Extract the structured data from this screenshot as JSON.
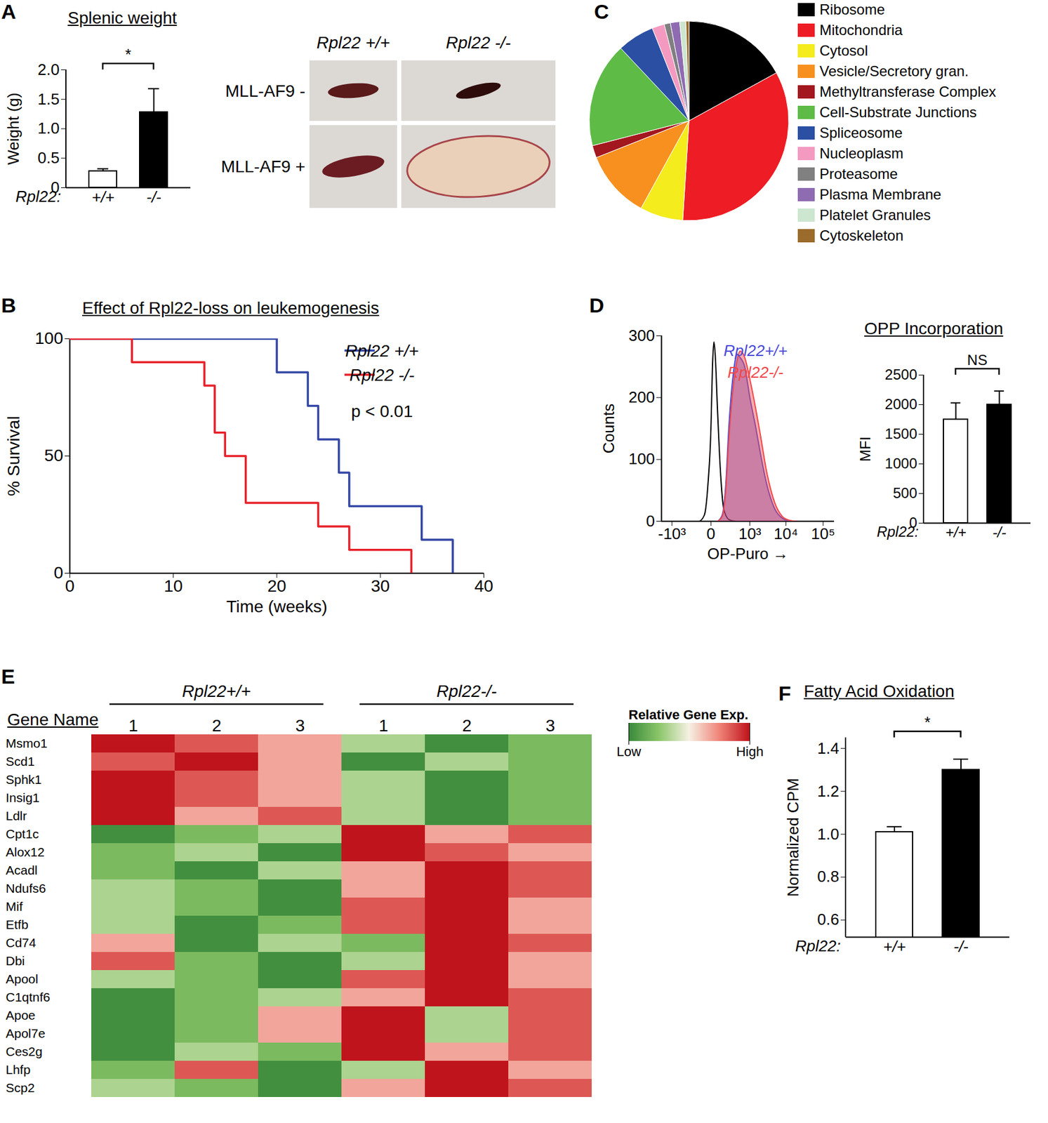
{
  "chart_data": [
    {
      "panel": "A",
      "type": "bar",
      "title": "Splenic weight",
      "ylabel": "Weight (g)",
      "xlabel": "Rpl22:",
      "categories": [
        "+/+",
        "-/-"
      ],
      "values": [
        0.28,
        1.28
      ],
      "errors": [
        0.04,
        0.4
      ],
      "colors": [
        "#ffffff",
        "#000000"
      ],
      "ylim": [
        0,
        2
      ],
      "yticks": [
        0,
        0.5,
        {
          "value": 1,
          "label": "1.0"
        },
        1.5,
        {
          "value": 2,
          "label": "2.0"
        }
      ],
      "annotation": "*"
    },
    {
      "type": "image",
      "column_labels": [
        "Rpl22 +/+",
        "Rpl22 -/-"
      ],
      "row_labels": [
        "MLL-AF9 -",
        "MLL-AF9 +"
      ]
    },
    {
      "panel": "B",
      "type": "line",
      "title": "Effect of Rpl22-loss on leukemogenesis",
      "xlabel": "Time (weeks)",
      "ylabel": "% Survival",
      "xlim": [
        0,
        40
      ],
      "xticks": [
        0,
        10,
        20,
        30,
        40
      ],
      "ylim": [
        0,
        100
      ],
      "yticks": [
        0,
        50,
        100
      ],
      "line_style": "step",
      "legend": "top-right",
      "annotation": "p < 0.01",
      "series": [
        {
          "name": "Rpl22 +/+",
          "color": "#3346a6",
          "x": [
            0,
            20,
            23,
            24,
            26,
            27,
            34,
            37
          ],
          "values": [
            100,
            85.7,
            71.4,
            57.1,
            42.9,
            28.6,
            14.3,
            0
          ]
        },
        {
          "name": "Rpl22 -/-",
          "color": "#e8212a",
          "x": [
            0,
            6,
            13,
            14,
            15,
            17,
            24,
            27,
            33
          ],
          "values": [
            100,
            90,
            80,
            60,
            50,
            30,
            20,
            10,
            0
          ]
        }
      ]
    },
    {
      "panel": "C",
      "type": "pie",
      "legend": "right",
      "categories": [
        "Ribosome",
        "Mitochondria",
        "Cytosol",
        "Vesicle/Secretory gran.",
        "Methyltransferase Complex",
        "Cell-Substrate Junctions",
        "Spliceosome",
        "Nucleoplasm",
        "Proteasome",
        "Plasma Membrane",
        "Platelet Granules",
        "Cytoskeleton"
      ],
      "values": [
        17,
        34,
        7,
        11,
        2,
        17,
        6,
        2,
        1,
        1.5,
        1,
        0.5
      ],
      "colors": [
        "#000000",
        "#ee1c24",
        "#f4ec1c",
        "#f7901e",
        "#a3171f",
        "#5dbb46",
        "#2b4fa3",
        "#f49ac1",
        "#808080",
        "#8f6bb2",
        "#cde6cf",
        "#9a6b2a"
      ]
    },
    {
      "panel": "D",
      "type": "area",
      "xlabel": "OP-Puro →",
      "ylabel": "Counts",
      "log": "x",
      "legend": "top-right",
      "xlim": [
        -2000,
        200000
      ],
      "xticks": [
        {
          "value": -1000,
          "label": "-10³"
        },
        0,
        {
          "value": 1000,
          "label": "10³"
        },
        {
          "value": 10000,
          "label": "10⁴"
        },
        {
          "value": 100000,
          "label": "10⁵"
        }
      ],
      "ylim": [
        0,
        300
      ],
      "yticks": [
        0,
        100,
        200,
        300
      ],
      "series": [
        {
          "type": "line",
          "color": "#000000",
          "x": [
            -100,
            -50,
            -20,
            0,
            10,
            20,
            30,
            50,
            80,
            120,
            200,
            350
          ],
          "values": [
            0,
            10,
            60,
            150,
            250,
            290,
            270,
            180,
            80,
            20,
            3,
            0
          ]
        },
        {
          "name": "Rpl22+/+",
          "type": "area",
          "color": "#4b4bd8",
          "x": [
            50,
            100,
            150,
            200,
            300,
            400,
            500,
            700,
            1000,
            1500,
            2000,
            3000,
            5000,
            8000,
            12000,
            20000
          ],
          "values": [
            0,
            10,
            60,
            150,
            240,
            270,
            265,
            250,
            200,
            150,
            110,
            60,
            20,
            5,
            1,
            0
          ]
        },
        {
          "name": "Rpl22-/-",
          "type": "area",
          "color": "#f0484c",
          "x": [
            50,
            100,
            150,
            200,
            300,
            400,
            500,
            700,
            1000,
            1500,
            2000,
            3000,
            5000,
            8000,
            12000,
            20000
          ],
          "values": [
            0,
            8,
            50,
            130,
            220,
            260,
            275,
            265,
            230,
            180,
            140,
            80,
            30,
            8,
            2,
            0
          ]
        }
      ]
    },
    {
      "type": "bar",
      "title": "OPP Incorporation",
      "ylabel": "MFI",
      "xlabel": "Rpl22:",
      "categories": [
        "+/+",
        "-/-"
      ],
      "values": [
        1750,
        2000
      ],
      "errors": [
        280,
        230
      ],
      "colors": [
        "#ffffff",
        "#000000"
      ],
      "ylim": [
        0,
        2500
      ],
      "yticks": [
        0,
        500,
        1000,
        1500,
        2000,
        2500
      ],
      "annotation": "NS"
    },
    {
      "panel": "E",
      "type": "heatmap",
      "ylabel": "Gene Name",
      "groups": [
        {
          "label": "Rpl22+/+",
          "samples": [
            "1",
            "2",
            "3"
          ]
        },
        {
          "label": "Rpl22-/-",
          "samples": [
            "1",
            "2",
            "3"
          ]
        }
      ],
      "genes": [
        "Msmo1",
        "Scd1",
        "Sphk1",
        "Insig1",
        "Ldlr",
        "Cpt1c",
        "Alox12",
        "Acadl",
        "Ndufs6",
        "Mif",
        "Etfb",
        "Cd74",
        "Dbi",
        "Apool",
        "C1qtnf6",
        "Apoe",
        "Apol7e",
        "Ces2g",
        "Lhfp",
        "Scp2"
      ],
      "values": [
        [
          1,
          0.7,
          0.35,
          -0.35,
          -0.95,
          -0.6
        ],
        [
          0.7,
          1,
          0.35,
          -0.95,
          -0.35,
          -0.6
        ],
        [
          1,
          0.7,
          0.35,
          -0.35,
          -0.95,
          -0.6
        ],
        [
          1,
          0.7,
          0.35,
          -0.35,
          -0.95,
          -0.6
        ],
        [
          1,
          0.35,
          0.7,
          -0.35,
          -0.95,
          -0.6
        ],
        [
          -0.95,
          -0.6,
          -0.35,
          1,
          0.35,
          0.7
        ],
        [
          -0.6,
          -0.35,
          -0.95,
          1,
          0.7,
          0.35
        ],
        [
          -0.6,
          -0.95,
          -0.35,
          0.35,
          1,
          0.7
        ],
        [
          -0.35,
          -0.6,
          -0.95,
          0.35,
          1,
          0.7
        ],
        [
          -0.35,
          -0.6,
          -0.95,
          0.7,
          1,
          0.35
        ],
        [
          -0.35,
          -0.95,
          -0.6,
          0.7,
          1,
          0.35
        ],
        [
          0.35,
          -0.95,
          -0.35,
          -0.6,
          1,
          0.7
        ],
        [
          0.7,
          -0.6,
          -0.95,
          -0.35,
          1,
          0.35
        ],
        [
          -0.35,
          -0.6,
          -0.95,
          0.7,
          1,
          0.35
        ],
        [
          -0.95,
          -0.6,
          -0.35,
          0.35,
          1,
          0.7
        ],
        [
          -0.95,
          -0.6,
          0.35,
          1,
          -0.35,
          0.7
        ],
        [
          -0.95,
          -0.6,
          0.35,
          1,
          -0.35,
          0.7
        ],
        [
          -0.95,
          -0.35,
          -0.6,
          1,
          0.35,
          0.7
        ],
        [
          -0.6,
          0.7,
          -0.95,
          -0.35,
          1,
          0.35
        ],
        [
          -0.35,
          -0.6,
          -0.95,
          0.35,
          1,
          0.7
        ]
      ],
      "colorbar": {
        "title": "Relative Gene Exp.",
        "range": [
          -1,
          1
        ],
        "ticks": [
          {
            "value": -1,
            "label": "Low"
          },
          {
            "value": 1,
            "label": "High"
          }
        ],
        "colors": [
          "#3a8a3a",
          "#8cc66a",
          "#f6f1e4",
          "#f0857a",
          "#c0141c"
        ]
      }
    },
    {
      "panel": "F",
      "type": "bar",
      "title": "Fatty Acid Oxidation",
      "ylabel": "Normalized CPM",
      "xlabel": "Rpl22:",
      "categories": [
        "+/+",
        "-/-"
      ],
      "values": [
        1.01,
        1.3
      ],
      "errors": [
        0.025,
        0.05
      ],
      "colors": [
        "#ffffff",
        "#000000"
      ],
      "ylim": [
        0.52,
        1.45
      ],
      "yticks": [
        0.6,
        0.8,
        {
          "value": 1,
          "label": "1.0"
        },
        1.2,
        1.4
      ],
      "annotation": "*"
    }
  ]
}
